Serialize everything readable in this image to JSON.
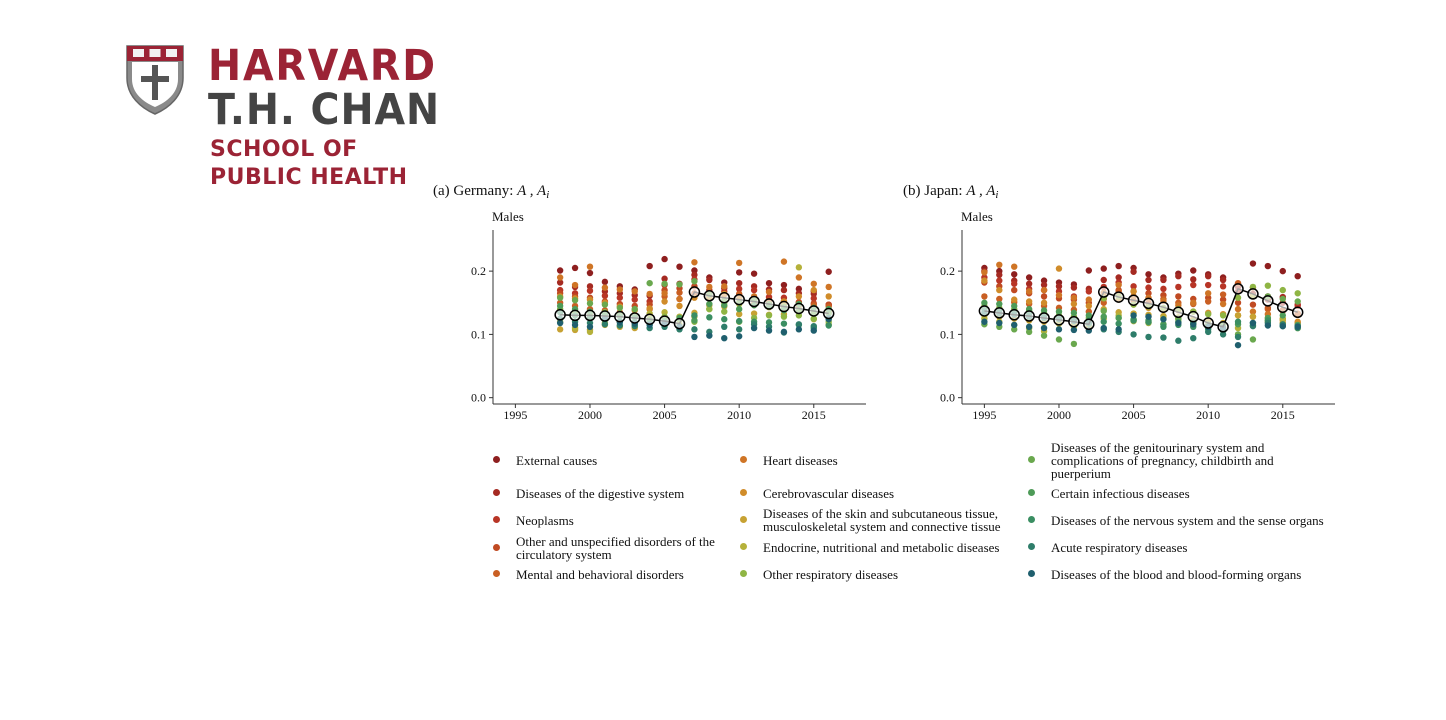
{
  "logo": {
    "line1": "HARVARD",
    "line2": "T.H. CHAN",
    "line3": "SCHOOL OF",
    "line4": "PUBLIC HEALTH",
    "crimson": "#9b2335",
    "gray": "#444444"
  },
  "chart_data": [
    {
      "type": "scatter",
      "panel_tag": "(a)",
      "title": "Germany: ",
      "title_math": "A , A",
      "title_sub": "i",
      "subtitle": "Males",
      "xlim": [
        1993.5,
        2018.5
      ],
      "ylim": [
        -0.01,
        0.265
      ],
      "xticks": [
        1995,
        2000,
        2005,
        2010,
        2015
      ],
      "yticks": [
        0.0,
        0.1,
        0.2
      ],
      "ytick_labels": [
        "0.0",
        "0.1",
        "0.2"
      ],
      "aggregate_series": {
        "name": "A",
        "x": [
          1998,
          1999,
          2000,
          2001,
          2002,
          2003,
          2004,
          2005,
          2006,
          2007,
          2008,
          2009,
          2010,
          2011,
          2012,
          2013,
          2014,
          2015,
          2016
        ],
        "values": [
          0.131,
          0.13,
          0.13,
          0.129,
          0.128,
          0.126,
          0.124,
          0.121,
          0.117,
          0.167,
          0.161,
          0.158,
          0.155,
          0.152,
          0.148,
          0.144,
          0.141,
          0.137,
          0.133
        ]
      },
      "cause_points": [
        {
          "cause": 0,
          "y": [
            0.201,
            0.205,
            0.197,
            0.183,
            0.176,
            0.171,
            0.208,
            0.219,
            0.207,
            0.201,
            0.19,
            0.182,
            0.198,
            0.196,
            0.181,
            0.178,
            0.172,
            0.168,
            0.199
          ]
        },
        {
          "cause": 1,
          "y": [
            0.182,
            0.175,
            0.176,
            0.168,
            0.165,
            0.162,
            0.161,
            0.188,
            0.18,
            0.194,
            0.186,
            0.173,
            0.181,
            0.176,
            0.171,
            0.17,
            0.165,
            0.164,
            0.147
          ]
        },
        {
          "cause": 2,
          "y": [
            0.17,
            0.165,
            0.169,
            0.161,
            0.158,
            0.155,
            0.152,
            0.178,
            0.156,
            0.187,
            0.17,
            0.168,
            0.172,
            0.17,
            0.159,
            0.158,
            0.151,
            0.157,
            0.146
          ]
        },
        {
          "cause": 3,
          "y": [
            0.165,
            0.16,
            0.158,
            0.152,
            0.148,
            0.145,
            0.147,
            0.17,
            0.173,
            0.176,
            0.16,
            0.163,
            0.162,
            0.158,
            0.154,
            0.152,
            0.15,
            0.149,
            0.147
          ]
        },
        {
          "cause": 4,
          "y": [
            0.15,
            0.145,
            0.14,
            0.138,
            0.135,
            0.128,
            0.14,
            0.16,
            0.166,
            0.165,
            0.158,
            0.152,
            0.164,
            0.148,
            0.15,
            0.147,
            0.146,
            0.146,
            0.144
          ]
        },
        {
          "cause": 5,
          "y": [
            0.19,
            0.178,
            0.207,
            0.174,
            0.171,
            0.168,
            0.164,
            0.165,
            0.156,
            0.214,
            0.175,
            0.176,
            0.213,
            0.16,
            0.167,
            0.215,
            0.19,
            0.18,
            0.175
          ]
        },
        {
          "cause": 6,
          "y": [
            0.16,
            0.157,
            0.155,
            0.15,
            0.144,
            0.138,
            0.141,
            0.152,
            0.145,
            0.158,
            0.158,
            0.164,
            0.156,
            0.154,
            0.145,
            0.152,
            0.16,
            0.17,
            0.16
          ]
        },
        {
          "cause": 7,
          "y": [
            0.108,
            0.107,
            0.107,
            0.115,
            0.112,
            0.11,
            0.124,
            0.122,
            0.115,
            0.134,
            0.146,
            0.144,
            0.132,
            0.133,
            0.131,
            0.132,
            0.14,
            0.142,
            0.136
          ]
        },
        {
          "cause": 8,
          "y": [
            0.12,
            0.11,
            0.104,
            0.118,
            0.12,
            0.115,
            0.133,
            0.135,
            0.128,
            0.128,
            0.14,
            0.15,
            0.148,
            0.156,
            0.143,
            0.145,
            0.206,
            0.124,
            0.116
          ]
        },
        {
          "cause": 9,
          "y": [
            0.14,
            0.135,
            0.13,
            0.135,
            0.132,
            0.13,
            0.125,
            0.128,
            0.123,
            0.12,
            0.14,
            0.136,
            0.12,
            0.126,
            0.13,
            0.128,
            0.13,
            0.125,
            0.12
          ]
        },
        {
          "cause": 10,
          "y": [
            0.158,
            0.154,
            0.149,
            0.147,
            0.142,
            0.14,
            0.181,
            0.18,
            0.179,
            0.184,
            0.163,
            0.154,
            0.15,
            0.155,
            0.148,
            0.143,
            0.138,
            0.135,
            0.133
          ]
        },
        {
          "cause": 11,
          "y": [
            0.145,
            0.14,
            0.136,
            0.132,
            0.129,
            0.127,
            0.122,
            0.122,
            0.126,
            0.122,
            0.148,
            0.146,
            0.14,
            0.146,
            0.144,
            0.138,
            0.148,
            0.142,
            0.14
          ]
        },
        {
          "cause": 12,
          "y": [
            0.135,
            0.13,
            0.126,
            0.123,
            0.121,
            0.119,
            0.116,
            0.115,
            0.113,
            0.13,
            0.127,
            0.124,
            0.121,
            0.12,
            0.119,
            0.117,
            0.115,
            0.11,
            0.114
          ]
        },
        {
          "cause": 13,
          "y": [
            0.125,
            0.12,
            0.118,
            0.116,
            0.114,
            0.113,
            0.11,
            0.112,
            0.108,
            0.108,
            0.104,
            0.112,
            0.108,
            0.116,
            0.112,
            0.103,
            0.116,
            0.113,
            0.126
          ]
        },
        {
          "cause": 14,
          "y": [
            0.118,
            0.115,
            0.112,
            0.125,
            0.119,
            0.117,
            0.115,
            0.118,
            0.112,
            0.096,
            0.098,
            0.094,
            0.097,
            0.11,
            0.106,
            0.104,
            0.108,
            0.106,
            0.124
          ]
        }
      ]
    },
    {
      "type": "scatter",
      "panel_tag": "(b)",
      "title": "Japan: ",
      "title_math": "A , A",
      "title_sub": "i",
      "subtitle": "Males",
      "xlim": [
        1993.5,
        2018.5
      ],
      "ylim": [
        -0.01,
        0.265
      ],
      "xticks": [
        1995,
        2000,
        2005,
        2010,
        2015
      ],
      "yticks": [
        0.0,
        0.1,
        0.2
      ],
      "ytick_labels": [
        "0.0",
        "0.1",
        "0.2"
      ],
      "aggregate_series": {
        "name": "A",
        "x": [
          1995,
          1996,
          1997,
          1998,
          1999,
          2000,
          2001,
          2002,
          2003,
          2004,
          2005,
          2006,
          2007,
          2008,
          2009,
          2010,
          2011,
          2012,
          2013,
          2014,
          2015,
          2016
        ],
        "values": [
          0.137,
          0.134,
          0.131,
          0.129,
          0.126,
          0.123,
          0.12,
          0.116,
          0.167,
          0.159,
          0.154,
          0.149,
          0.143,
          0.135,
          0.128,
          0.118,
          0.112,
          0.172,
          0.164,
          0.153,
          0.143,
          0.135
        ]
      },
      "cause_points": [
        {
          "cause": 0,
          "y": [
            0.205,
            0.2,
            0.195,
            0.19,
            0.185,
            0.182,
            0.179,
            0.201,
            0.204,
            0.208,
            0.205,
            0.195,
            0.19,
            0.196,
            0.201,
            0.195,
            0.19,
            0.18,
            0.212,
            0.208,
            0.2,
            0.192
          ]
        },
        {
          "cause": 1,
          "y": [
            0.2,
            0.194,
            0.185,
            0.18,
            0.178,
            0.176,
            0.174,
            0.172,
            0.186,
            0.19,
            0.199,
            0.186,
            0.186,
            0.192,
            0.187,
            0.192,
            0.186,
            0.175,
            0.164,
            0.16,
            0.159,
            0.147
          ]
        },
        {
          "cause": 2,
          "y": [
            0.19,
            0.185,
            0.18,
            0.172,
            0.17,
            0.168,
            0.16,
            0.168,
            0.175,
            0.182,
            0.176,
            0.174,
            0.172,
            0.175,
            0.178,
            0.178,
            0.176,
            0.168,
            0.16,
            0.155,
            0.15,
            0.145
          ]
        },
        {
          "cause": 3,
          "y": [
            0.182,
            0.176,
            0.17,
            0.165,
            0.16,
            0.157,
            0.155,
            0.15,
            0.156,
            0.17,
            0.168,
            0.165,
            0.162,
            0.16,
            0.156,
            0.158,
            0.155,
            0.15,
            0.147,
            0.142,
            0.138,
            0.132
          ]
        },
        {
          "cause": 4,
          "y": [
            0.16,
            0.156,
            0.151,
            0.148,
            0.145,
            0.142,
            0.139,
            0.136,
            0.15,
            0.168,
            0.154,
            0.15,
            0.156,
            0.15,
            0.148,
            0.152,
            0.163,
            0.181,
            0.174,
            0.14,
            0.137,
            0.133
          ]
        },
        {
          "cause": 5,
          "y": [
            0.198,
            0.21,
            0.207,
            0.168,
            0.17,
            0.162,
            0.158,
            0.155,
            0.166,
            0.178,
            0.16,
            0.158,
            0.153,
            0.146,
            0.15,
            0.165,
            0.148,
            0.14,
            0.136,
            0.132,
            0.125,
            0.118
          ]
        },
        {
          "cause": 6,
          "y": [
            0.185,
            0.17,
            0.155,
            0.152,
            0.15,
            0.204,
            0.148,
            0.145,
            0.16,
            0.155,
            0.168,
            0.142,
            0.14,
            0.138,
            0.136,
            0.134,
            0.132,
            0.13,
            0.128,
            0.126,
            0.122,
            0.12
          ]
        },
        {
          "cause": 7,
          "y": [
            0.13,
            0.128,
            0.125,
            0.122,
            0.12,
            0.118,
            0.116,
            0.113,
            0.14,
            0.135,
            0.133,
            0.131,
            0.129,
            0.127,
            0.124,
            0.122,
            0.118,
            0.13,
            0.128,
            0.12,
            0.118,
            0.115
          ]
        },
        {
          "cause": 8,
          "y": [
            0.125,
            0.12,
            0.115,
            0.11,
            0.105,
            0.117,
            0.112,
            0.118,
            0.125,
            0.13,
            0.121,
            0.118,
            0.126,
            0.124,
            0.116,
            0.114,
            0.112,
            0.11,
            0.16,
            0.122,
            0.124,
            0.11
          ]
        },
        {
          "cause": 9,
          "y": [
            0.145,
            0.142,
            0.14,
            0.137,
            0.133,
            0.13,
            0.128,
            0.126,
            0.157,
            0.16,
            0.147,
            0.144,
            0.142,
            0.14,
            0.136,
            0.132,
            0.13,
            0.158,
            0.175,
            0.177,
            0.17,
            0.165
          ]
        },
        {
          "cause": 10,
          "y": [
            0.116,
            0.112,
            0.108,
            0.104,
            0.098,
            0.092,
            0.085,
            0.116,
            0.137,
            0.126,
            0.123,
            0.119,
            0.116,
            0.125,
            0.12,
            0.116,
            0.115,
            0.1,
            0.092,
            0.16,
            0.156,
            0.152
          ]
        },
        {
          "cause": 11,
          "y": [
            0.15,
            0.148,
            0.145,
            0.14,
            0.138,
            0.136,
            0.134,
            0.13,
            0.128,
            0.126,
            0.124,
            0.122,
            0.116,
            0.12,
            0.118,
            0.108,
            0.106,
            0.116,
            0.114,
            0.126,
            0.13,
            0.115
          ]
        },
        {
          "cause": 12,
          "y": [
            0.14,
            0.138,
            0.136,
            0.133,
            0.13,
            0.127,
            0.124,
            0.122,
            0.12,
            0.117,
            0.122,
            0.12,
            0.112,
            0.115,
            0.112,
            0.11,
            0.108,
            0.12,
            0.118,
            0.122,
            0.113,
            0.11
          ]
        },
        {
          "cause": 13,
          "y": [
            0.135,
            0.133,
            0.131,
            0.128,
            0.126,
            0.124,
            0.121,
            0.118,
            0.108,
            0.104,
            0.1,
            0.096,
            0.095,
            0.09,
            0.094,
            0.104,
            0.1,
            0.096,
            0.113,
            0.118,
            0.116,
            0.113
          ]
        },
        {
          "cause": 14,
          "y": [
            0.12,
            0.118,
            0.115,
            0.112,
            0.11,
            0.108,
            0.107,
            0.106,
            0.11,
            0.108,
            0.13,
            0.128,
            0.124,
            0.118,
            0.116,
            0.112,
            0.11,
            0.083,
            0.118,
            0.114,
            0.113,
            0.112
          ]
        }
      ]
    }
  ],
  "legend": {
    "items": [
      {
        "label": "External causes",
        "color": "#8e1f1f"
      },
      {
        "label": "Diseases of the digestive system",
        "color": "#a52a22"
      },
      {
        "label": "Neoplasms",
        "color": "#b83526"
      },
      {
        "label": "Other and unspecified disorders of the circulatory system",
        "color": "#c04a22"
      },
      {
        "label": "Mental and behavioral disorders",
        "color": "#c95f23"
      },
      {
        "label": "Heart diseases",
        "color": "#cf7526"
      },
      {
        "label": "Cerebrovascular diseases",
        "color": "#d08c2a"
      },
      {
        "label": "Diseases of the skin and subcutaneous tissue, musculoskeletal system and connective tissue",
        "color": "#c7a233"
      },
      {
        "label": "Endocrine, nutritional and metabolic diseases",
        "color": "#b5b13a"
      },
      {
        "label": "Other respiratory diseases",
        "color": "#8fb544"
      },
      {
        "label": "Diseases of the genitourinary system and complications of pregnancy, childbirth and puerperium",
        "color": "#6aa84e"
      },
      {
        "label": "Certain infectious diseases",
        "color": "#4e9b58"
      },
      {
        "label": "Diseases of the nervous system and the sense organs",
        "color": "#3a8e62"
      },
      {
        "label": "Acute respiratory diseases",
        "color": "#2e7d6a"
      },
      {
        "label": "Diseases of the blood and blood-forming organs",
        "color": "#1f5f6e"
      }
    ]
  }
}
